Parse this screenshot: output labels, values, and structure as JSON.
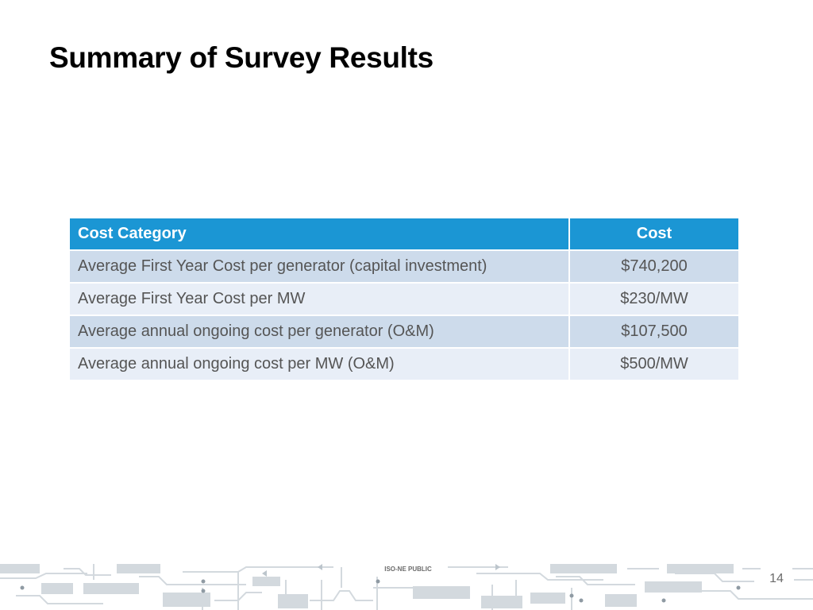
{
  "slide": {
    "title": "Summary of Survey Results",
    "page_number": "14",
    "footer_label": "ISO-NE PUBLIC"
  },
  "table": {
    "headers": [
      "Cost Category",
      "Cost"
    ],
    "rows": [
      [
        "Average First Year Cost per generator (capital investment)",
        "$740,200"
      ],
      [
        "Average First Year Cost per MW",
        "$230/MW"
      ],
      [
        "Average annual ongoing cost per generator (O&M)",
        "$107,500"
      ],
      [
        "Average annual ongoing cost per MW (O&M)",
        "$500/MW"
      ]
    ]
  },
  "colors": {
    "header_bg": "#1b96d4",
    "row_odd": "#cddbeb",
    "row_even": "#e8eef7",
    "circuit_art": "#cfd6dc"
  }
}
